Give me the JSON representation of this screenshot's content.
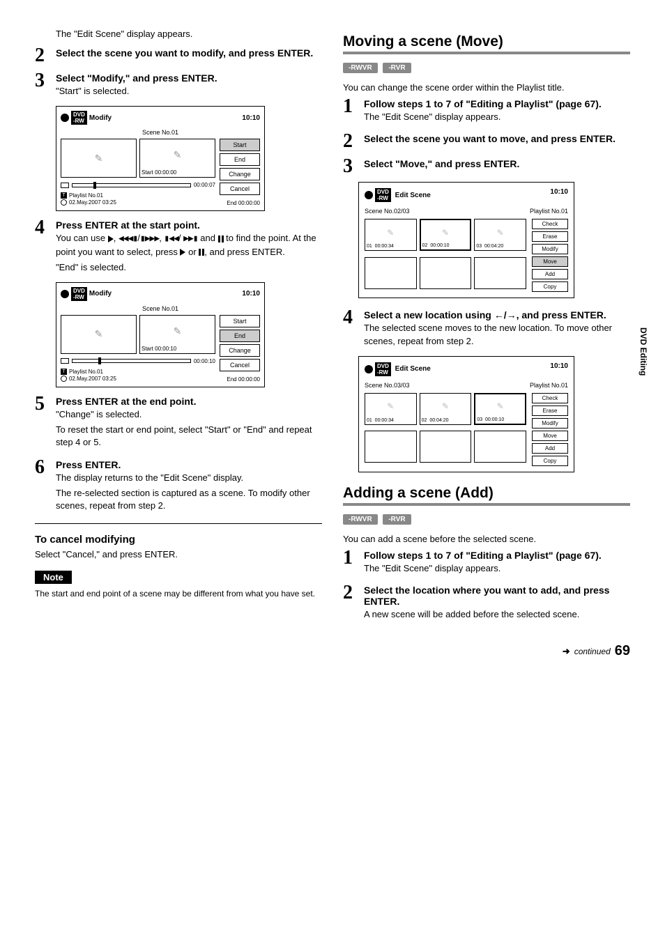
{
  "left": {
    "intro": "The \"Edit Scene\" display appears.",
    "step2": {
      "title": "Select the scene you want to modify, and press ENTER."
    },
    "step3": {
      "title": "Select \"Modify,\" and press ENTER.",
      "text": "\"Start\" is selected."
    },
    "modify_box1": {
      "title": "Modify",
      "time": "10:10",
      "scene": "Scene No.01",
      "thumb_start_label": "Start 00:00:00",
      "btns": {
        "start": "Start",
        "end": "End",
        "change": "Change",
        "cancel": "Cancel"
      },
      "selected": "start",
      "slider_time": "00:00:07",
      "playlist": "Playlist No.01",
      "date": "02.May.2007  03:25",
      "end_label": "End  00:00:00"
    },
    "step4": {
      "title": "Press ENTER at the start point.",
      "line1_a": "You can use ",
      "line1_b": ", ",
      "line1_c": "/",
      "line1_d": ", ",
      "line1_e": "/",
      "line2_a": " and ",
      "line2_b": " to find the point. At the point you want to select, press ",
      "line2_c": " or ",
      "line2_d": ", and press ENTER.",
      "line3": "\"End\" is selected."
    },
    "modify_box2": {
      "title": "Modify",
      "time": "10:10",
      "scene": "Scene No.01",
      "thumb_start_label": "Start 00:00:10",
      "btns": {
        "start": "Start",
        "end": "End",
        "change": "Change",
        "cancel": "Cancel"
      },
      "selected": "end",
      "slider_time": "00:00:10",
      "playlist": "Playlist No.01",
      "date": "02.May.2007  03:25",
      "end_label": "End  00:00:00"
    },
    "step5": {
      "title": "Press ENTER at the end point.",
      "t1": "\"Change\" is selected.",
      "t2": "To reset the start or end point, select \"Start\" or \"End\" and repeat step 4 or 5."
    },
    "step6": {
      "title": "Press ENTER.",
      "t1": "The display returns to the \"Edit Scene\" display.",
      "t2": "The re-selected section is captured as a scene. To modify other scenes, repeat from step 2."
    },
    "cancel": {
      "heading": "To cancel modifying",
      "text": "Select \"Cancel,\" and press ENTER."
    },
    "note": {
      "label": "Note",
      "text": "The start and end point of a scene may be different from what you have set."
    }
  },
  "right": {
    "move": {
      "heading": "Moving a scene (Move)",
      "badges": {
        "a": "-RWVR",
        "b": "-RVR"
      },
      "intro": "You can change the scene order within the Playlist title.",
      "step1": {
        "title": "Follow steps 1 to 7 of \"Editing a Playlist\" (page 67).",
        "text": "The \"Edit Scene\" display appears."
      },
      "step2": {
        "title": "Select the scene you want to move, and press ENTER."
      },
      "step3": {
        "title": "Select \"Move,\" and press ENTER."
      },
      "es1": {
        "title": "Edit Scene",
        "time": "10:10",
        "scene": "Scene No.02/03",
        "playlist": "Playlist No.01",
        "cells": [
          {
            "n": "01",
            "t": "00:00:34"
          },
          {
            "n": "02",
            "t": "00:00:10",
            "sel": true
          },
          {
            "n": "03",
            "t": "00:04:20"
          }
        ],
        "btns": [
          "Check",
          "Erase",
          "Modify",
          "Move",
          "Add",
          "Copy"
        ],
        "selected": "Move"
      },
      "step4": {
        "title": "Select a new location using ←/→, and press ENTER.",
        "t1": "The selected scene moves to the new location. To move other scenes, repeat from step 2."
      },
      "es2": {
        "title": "Edit Scene",
        "time": "10:10",
        "scene": "Scene No.03/03",
        "playlist": "Playlist No.01",
        "cells": [
          {
            "n": "01",
            "t": "00:00:34"
          },
          {
            "n": "02",
            "t": "00:04:20"
          },
          {
            "n": "03",
            "t": "00:00:10",
            "sel": true
          }
        ],
        "btns": [
          "Check",
          "Erase",
          "Modify",
          "Move",
          "Add",
          "Copy"
        ],
        "selected": ""
      }
    },
    "add": {
      "heading": "Adding a scene (Add)",
      "badges": {
        "a": "-RWVR",
        "b": "-RVR"
      },
      "intro": "You can add a scene before the selected scene.",
      "step1": {
        "title": "Follow steps 1 to 7 of \"Editing a Playlist\" (page 67).",
        "text": "The \"Edit Scene\" display appears."
      },
      "step2": {
        "title": "Select the location where you want to add, and press ENTER.",
        "text": "A new scene will be added before the selected scene."
      }
    },
    "sidebar": "DVD Editing"
  },
  "footer": {
    "continued": "continued",
    "page": "69"
  }
}
